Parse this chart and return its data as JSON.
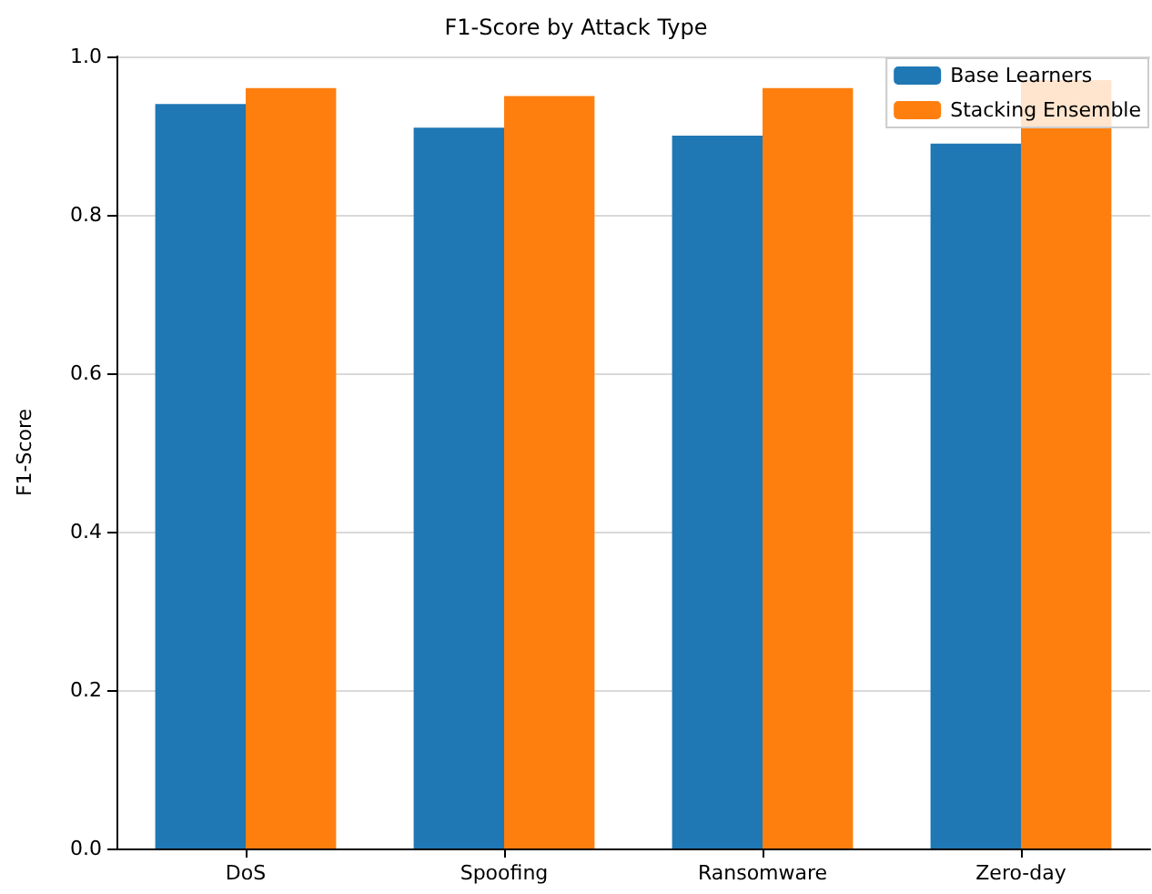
{
  "chart_data": {
    "type": "bar",
    "title": "F1-Score by Attack Type",
    "ylabel": "F1-Score",
    "categories": [
      "DoS",
      "Spoofing",
      "Ransomware",
      "Zero-day"
    ],
    "series": [
      {
        "name": "Base Learners",
        "color": "#1f77b4",
        "values": [
          0.94,
          0.91,
          0.9,
          0.89
        ]
      },
      {
        "name": "Stacking Ensemble",
        "color": "#ff7f0e",
        "values": [
          0.96,
          0.95,
          0.96,
          0.97
        ]
      }
    ],
    "ylim": [
      0,
      1.0
    ],
    "yticks": [
      {
        "value": 0,
        "label": "0.0"
      },
      {
        "value": 0.2,
        "label": "0.2"
      },
      {
        "value": 0.4,
        "label": "0.4"
      },
      {
        "value": 0.6,
        "label": "0.6"
      },
      {
        "value": 0.8,
        "label": "0.8"
      },
      {
        "value": 1.0,
        "label": "1.0"
      }
    ],
    "grid": "y",
    "legend": "top right"
  }
}
